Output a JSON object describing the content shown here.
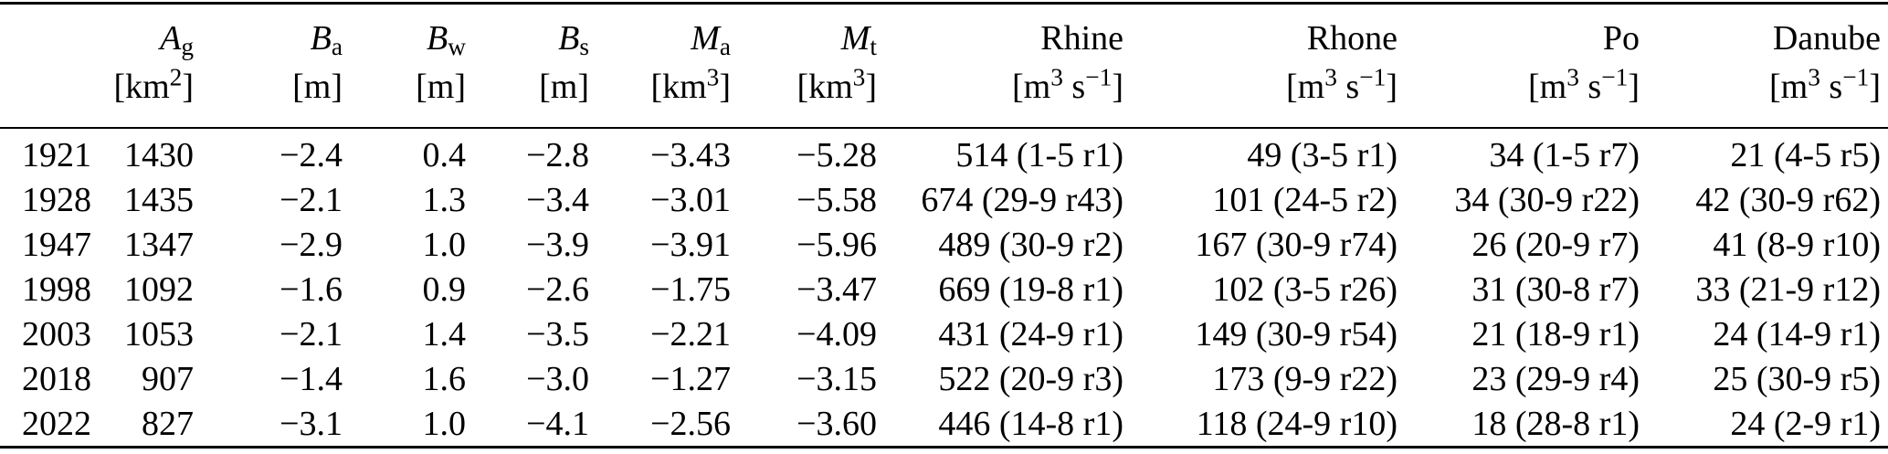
{
  "colors": {
    "text": "#000000",
    "background": "#ffffff",
    "rule": "#000000"
  },
  "table": {
    "header": [
      {
        "main": "",
        "sub": "",
        "u1": "",
        "s1": "",
        "u2": "",
        "s2": "",
        "u3": ""
      },
      {
        "main": "A",
        "sub": "g",
        "u1": "[km",
        "s1": "2",
        "u2": "",
        "s2": "",
        "u3": "]"
      },
      {
        "main": "B",
        "sub": "a",
        "u1": "[m]",
        "s1": "",
        "u2": "",
        "s2": "",
        "u3": ""
      },
      {
        "main": "B",
        "sub": "w",
        "u1": "[m]",
        "s1": "",
        "u2": "",
        "s2": "",
        "u3": ""
      },
      {
        "main": "B",
        "sub": "s",
        "u1": "[m]",
        "s1": "",
        "u2": "",
        "s2": "",
        "u3": ""
      },
      {
        "main": "M",
        "sub": "a",
        "u1": "[km",
        "s1": "3",
        "u2": "",
        "s2": "",
        "u3": "]"
      },
      {
        "main": "M",
        "sub": "t",
        "u1": "[km",
        "s1": "3",
        "u2": "",
        "s2": "",
        "u3": "]"
      },
      {
        "main": "Rhine",
        "sub": "",
        "u1": "[m",
        "s1": "3",
        "u2": " s",
        "s2": "−1",
        "u3": "]"
      },
      {
        "main": "Rhone",
        "sub": "",
        "u1": "[m",
        "s1": "3",
        "u2": " s",
        "s2": "−1",
        "u3": "]"
      },
      {
        "main": "Po",
        "sub": "",
        "u1": "[m",
        "s1": "3",
        "u2": " s",
        "s2": "−1",
        "u3": "]"
      },
      {
        "main": "Danube",
        "sub": "",
        "u1": "[m",
        "s1": "3",
        "u2": " s",
        "s2": "−1",
        "u3": "]"
      }
    ],
    "rows": [
      {
        "cells": [
          "1921",
          "1430",
          "−2.4",
          "0.4",
          "−2.8",
          "−3.43",
          "−5.28",
          "514 (1-5 r1)",
          "49 (3-5 r1)",
          "34 (1-5 r7)",
          "21 (4-5 r5)"
        ]
      },
      {
        "cells": [
          "1928",
          "1435",
          "−2.1",
          "1.3",
          "−3.4",
          "−3.01",
          "−5.58",
          "674 (29-9 r43)",
          "101 (24-5 r2)",
          "34 (30-9 r22)",
          "42 (30-9 r62)"
        ]
      },
      {
        "cells": [
          "1947",
          "1347",
          "−2.9",
          "1.0",
          "−3.9",
          "−3.91",
          "−5.96",
          "489 (30-9 r2)",
          "167 (30-9 r74)",
          "26 (20-9 r7)",
          "41 (8-9 r10)"
        ]
      },
      {
        "cells": [
          "1998",
          "1092",
          "−1.6",
          "0.9",
          "−2.6",
          "−1.75",
          "−3.47",
          "669 (19-8 r1)",
          "102 (3-5 r26)",
          "31 (30-8 r7)",
          "33 (21-9 r12)"
        ]
      },
      {
        "cells": [
          "2003",
          "1053",
          "−2.1",
          "1.4",
          "−3.5",
          "−2.21",
          "−4.09",
          "431 (24-9 r1)",
          "149 (30-9 r54)",
          "21 (18-9 r1)",
          "24 (14-9 r1)"
        ]
      },
      {
        "cells": [
          "2018",
          "907",
          "−1.4",
          "1.6",
          "−3.0",
          "−1.27",
          "−3.15",
          "522 (20-9 r3)",
          "173 (9-9 r22)",
          "23 (29-9 r4)",
          "25 (30-9 r5)"
        ]
      },
      {
        "cells": [
          "2022",
          "827",
          "−3.1",
          "1.0",
          "−4.1",
          "−2.56",
          "−3.60",
          "446 (14-8 r1)",
          "118 (24-9 r10)",
          "18 (28-8 r1)",
          "24 (2-9 r1)"
        ]
      }
    ]
  }
}
